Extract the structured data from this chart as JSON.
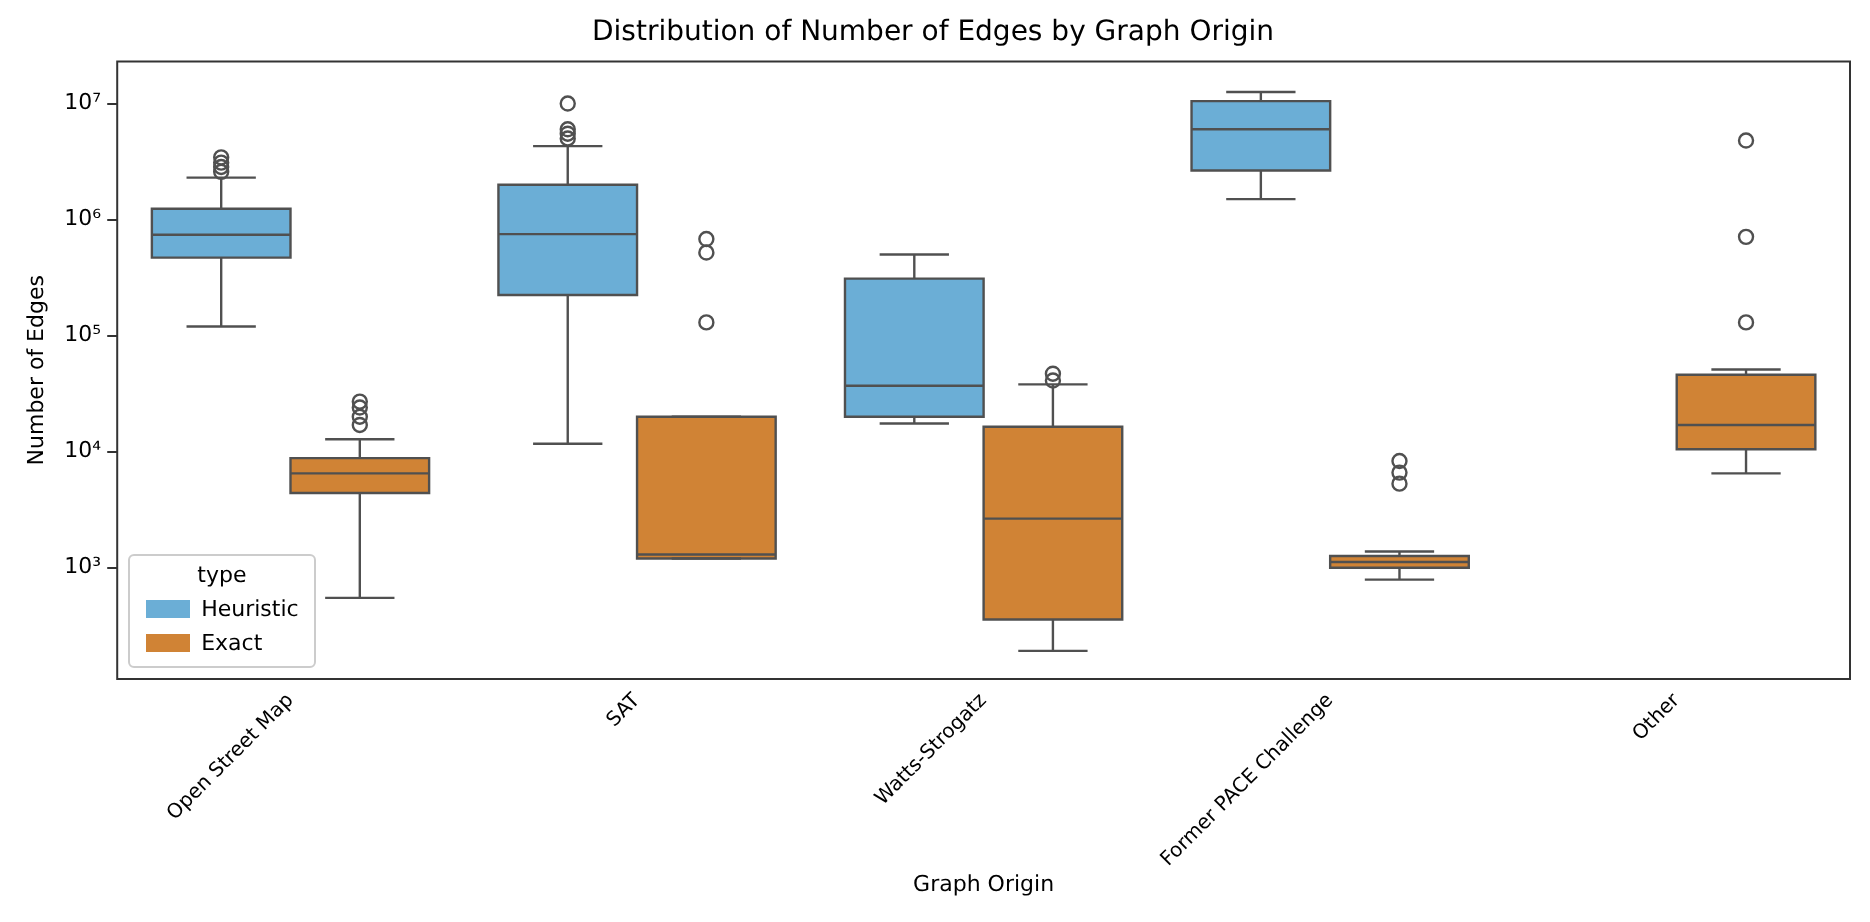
{
  "chart_data": {
    "type": "box",
    "title": "Distribution of Number of Edges by Graph Origin",
    "xlabel": "Graph Origin",
    "ylabel": "Number of Edges",
    "legend_title": "type",
    "legend": "bottom left",
    "log": true,
    "grid": false,
    "categories": [
      "Open Street Map",
      "SAT",
      "Watts-Strogatz",
      "Former PACE Challenge",
      "Other"
    ],
    "ylim": [
      110,
      23000000
    ],
    "yticks": [
      {
        "value": 1000,
        "label": "10³"
      },
      {
        "value": 10000,
        "label": "10⁴"
      },
      {
        "value": 100000,
        "label": "10⁵"
      },
      {
        "value": 1000000,
        "label": "10⁶"
      },
      {
        "value": 10000000,
        "label": "10⁷"
      }
    ],
    "series": [
      {
        "name": "Heuristic",
        "color": "#6baed6",
        "boxes": [
          {
            "low": 120000,
            "q1": 470000,
            "median": 740000,
            "q3": 1240000,
            "high": 2300000,
            "outliers": [
              2580000,
              2840000,
              3100000,
              3440000
            ]
          },
          {
            "low": 11700,
            "q1": 224000,
            "median": 750000,
            "q3": 2000000,
            "high": 4300000,
            "outliers": [
              5000000,
              5500000,
              6000000,
              10000000
            ]
          },
          {
            "low": 17500,
            "q1": 20000,
            "median": 37000,
            "q3": 310000,
            "high": 500000
          },
          {
            "low": 1500000,
            "q1": 2650000,
            "median": 6000000,
            "q3": 10500000,
            "high": 12600000
          },
          null
        ]
      },
      {
        "name": "Exact",
        "color": "#d08335",
        "boxes": [
          {
            "low": 550,
            "q1": 4400,
            "median": 6500,
            "q3": 8800,
            "high": 12800,
            "outliers": [
              17000,
              20000,
              24000,
              27000
            ]
          },
          {
            "low": 1200,
            "q1": 1200,
            "median": 1300,
            "q3": 20000,
            "high": 20000,
            "outliers": [
              130000,
              520000,
              680000
            ]
          },
          {
            "low": 192,
            "q1": 358,
            "median": 2650,
            "q3": 16400,
            "high": 38000,
            "outliers": [
              41000,
              47000
            ]
          },
          {
            "low": 790,
            "q1": 1000,
            "median": 1120,
            "q3": 1260,
            "high": 1380,
            "outliers": [
              5300,
              6600,
              8300
            ]
          },
          {
            "low": 6500,
            "q1": 10500,
            "median": 17000,
            "q3": 46000,
            "high": 51000,
            "outliers": [
              130000,
              710000,
              4800000
            ]
          }
        ]
      }
    ]
  }
}
